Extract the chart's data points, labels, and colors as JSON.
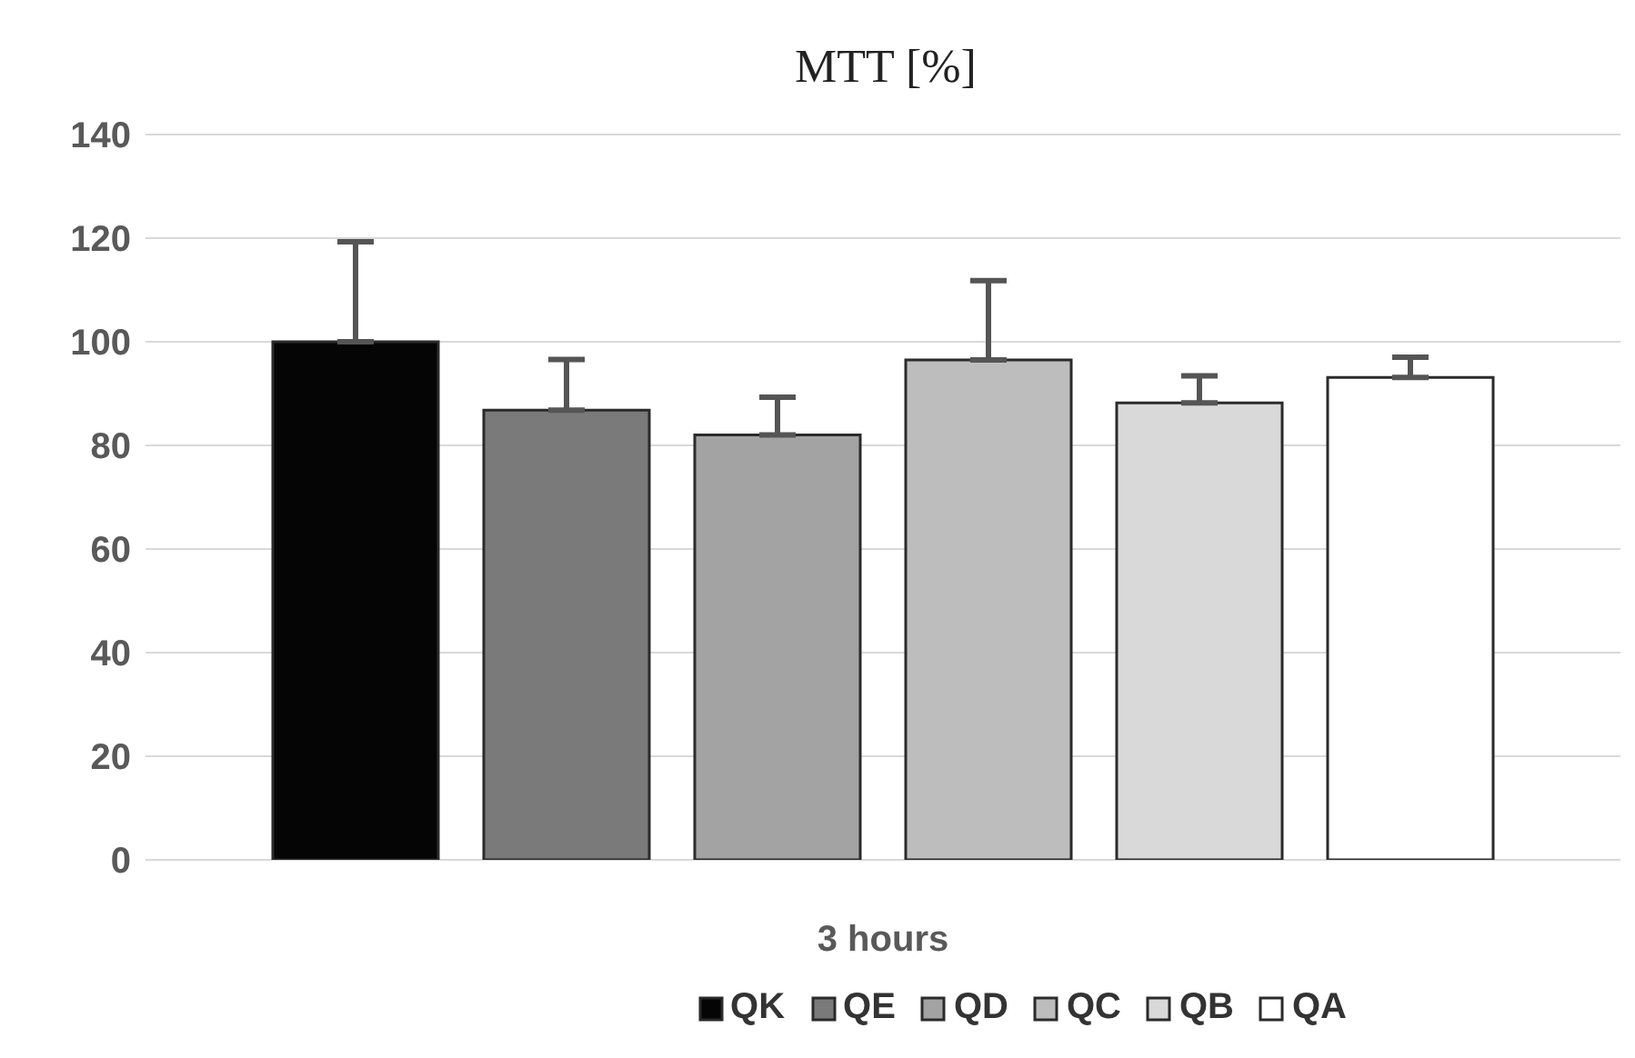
{
  "chart_data": {
    "type": "bar",
    "title": "MTT [%]",
    "categories": [
      "3 hours"
    ],
    "series": [
      {
        "name": "QK",
        "color": "#050505",
        "values": [
          100
        ],
        "errors": [
          [
            100,
            119.3
          ]
        ]
      },
      {
        "name": "QE",
        "color": "#7a7a7a",
        "values": [
          86.8
        ],
        "errors": [
          [
            86.8,
            96.6
          ]
        ]
      },
      {
        "name": "QD",
        "color": "#a3a3a3",
        "values": [
          82
        ],
        "errors": [
          [
            82,
            89.3
          ]
        ]
      },
      {
        "name": "QC",
        "color": "#bdbdbd",
        "values": [
          96.5
        ],
        "errors": [
          [
            96.5,
            111.8
          ]
        ]
      },
      {
        "name": "QB",
        "color": "#d9d9d9",
        "values": [
          88.2
        ],
        "errors": [
          [
            88.2,
            93.4
          ]
        ]
      },
      {
        "name": "QA",
        "color": "#ffffff",
        "values": [
          93.1
        ],
        "errors": [
          [
            93.1,
            97
          ]
        ]
      }
    ],
    "ylim": [
      0,
      140
    ],
    "yticks": [
      0,
      20,
      40,
      60,
      80,
      100,
      120,
      140
    ],
    "grid": "y",
    "legend": "bottom"
  }
}
